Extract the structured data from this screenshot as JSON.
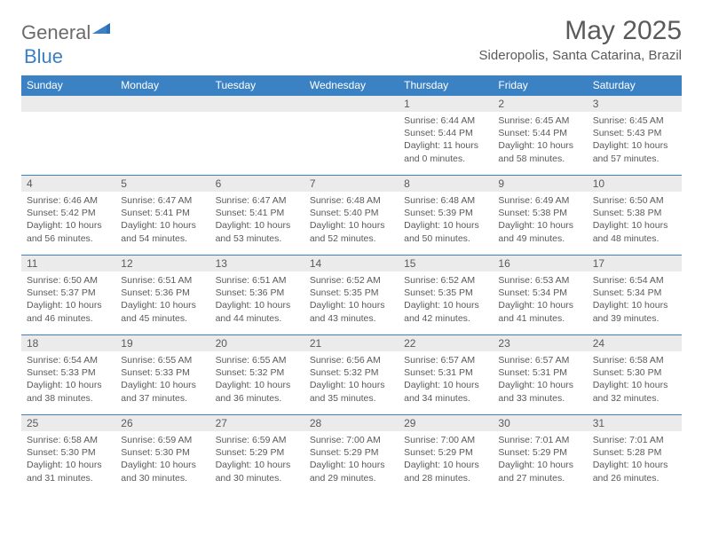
{
  "brand": {
    "part1": "General",
    "part2": "Blue"
  },
  "title": "May 2025",
  "location": "Sideropolis, Santa Catarina, Brazil",
  "colors": {
    "header_bg": "#3b82c4",
    "header_text": "#ffffff",
    "daynum_bg": "#ebebeb",
    "text": "#5a5a5a",
    "row_border": "#3b82c4",
    "logo_gray": "#6b6b6b",
    "logo_blue": "#3b7fc4",
    "page_bg": "#ffffff"
  },
  "weekdays": [
    "Sunday",
    "Monday",
    "Tuesday",
    "Wednesday",
    "Thursday",
    "Friday",
    "Saturday"
  ],
  "weeks": [
    [
      null,
      null,
      null,
      null,
      {
        "n": "1",
        "sr": "6:44 AM",
        "ss": "5:44 PM",
        "dl": "11 hours and 0 minutes."
      },
      {
        "n": "2",
        "sr": "6:45 AM",
        "ss": "5:44 PM",
        "dl": "10 hours and 58 minutes."
      },
      {
        "n": "3",
        "sr": "6:45 AM",
        "ss": "5:43 PM",
        "dl": "10 hours and 57 minutes."
      }
    ],
    [
      {
        "n": "4",
        "sr": "6:46 AM",
        "ss": "5:42 PM",
        "dl": "10 hours and 56 minutes."
      },
      {
        "n": "5",
        "sr": "6:47 AM",
        "ss": "5:41 PM",
        "dl": "10 hours and 54 minutes."
      },
      {
        "n": "6",
        "sr": "6:47 AM",
        "ss": "5:41 PM",
        "dl": "10 hours and 53 minutes."
      },
      {
        "n": "7",
        "sr": "6:48 AM",
        "ss": "5:40 PM",
        "dl": "10 hours and 52 minutes."
      },
      {
        "n": "8",
        "sr": "6:48 AM",
        "ss": "5:39 PM",
        "dl": "10 hours and 50 minutes."
      },
      {
        "n": "9",
        "sr": "6:49 AM",
        "ss": "5:38 PM",
        "dl": "10 hours and 49 minutes."
      },
      {
        "n": "10",
        "sr": "6:50 AM",
        "ss": "5:38 PM",
        "dl": "10 hours and 48 minutes."
      }
    ],
    [
      {
        "n": "11",
        "sr": "6:50 AM",
        "ss": "5:37 PM",
        "dl": "10 hours and 46 minutes."
      },
      {
        "n": "12",
        "sr": "6:51 AM",
        "ss": "5:36 PM",
        "dl": "10 hours and 45 minutes."
      },
      {
        "n": "13",
        "sr": "6:51 AM",
        "ss": "5:36 PM",
        "dl": "10 hours and 44 minutes."
      },
      {
        "n": "14",
        "sr": "6:52 AM",
        "ss": "5:35 PM",
        "dl": "10 hours and 43 minutes."
      },
      {
        "n": "15",
        "sr": "6:52 AM",
        "ss": "5:35 PM",
        "dl": "10 hours and 42 minutes."
      },
      {
        "n": "16",
        "sr": "6:53 AM",
        "ss": "5:34 PM",
        "dl": "10 hours and 41 minutes."
      },
      {
        "n": "17",
        "sr": "6:54 AM",
        "ss": "5:34 PM",
        "dl": "10 hours and 39 minutes."
      }
    ],
    [
      {
        "n": "18",
        "sr": "6:54 AM",
        "ss": "5:33 PM",
        "dl": "10 hours and 38 minutes."
      },
      {
        "n": "19",
        "sr": "6:55 AM",
        "ss": "5:33 PM",
        "dl": "10 hours and 37 minutes."
      },
      {
        "n": "20",
        "sr": "6:55 AM",
        "ss": "5:32 PM",
        "dl": "10 hours and 36 minutes."
      },
      {
        "n": "21",
        "sr": "6:56 AM",
        "ss": "5:32 PM",
        "dl": "10 hours and 35 minutes."
      },
      {
        "n": "22",
        "sr": "6:57 AM",
        "ss": "5:31 PM",
        "dl": "10 hours and 34 minutes."
      },
      {
        "n": "23",
        "sr": "6:57 AM",
        "ss": "5:31 PM",
        "dl": "10 hours and 33 minutes."
      },
      {
        "n": "24",
        "sr": "6:58 AM",
        "ss": "5:30 PM",
        "dl": "10 hours and 32 minutes."
      }
    ],
    [
      {
        "n": "25",
        "sr": "6:58 AM",
        "ss": "5:30 PM",
        "dl": "10 hours and 31 minutes."
      },
      {
        "n": "26",
        "sr": "6:59 AM",
        "ss": "5:30 PM",
        "dl": "10 hours and 30 minutes."
      },
      {
        "n": "27",
        "sr": "6:59 AM",
        "ss": "5:29 PM",
        "dl": "10 hours and 30 minutes."
      },
      {
        "n": "28",
        "sr": "7:00 AM",
        "ss": "5:29 PM",
        "dl": "10 hours and 29 minutes."
      },
      {
        "n": "29",
        "sr": "7:00 AM",
        "ss": "5:29 PM",
        "dl": "10 hours and 28 minutes."
      },
      {
        "n": "30",
        "sr": "7:01 AM",
        "ss": "5:29 PM",
        "dl": "10 hours and 27 minutes."
      },
      {
        "n": "31",
        "sr": "7:01 AM",
        "ss": "5:28 PM",
        "dl": "10 hours and 26 minutes."
      }
    ]
  ],
  "labels": {
    "sunrise": "Sunrise: ",
    "sunset": "Sunset: ",
    "daylight": "Daylight: "
  }
}
